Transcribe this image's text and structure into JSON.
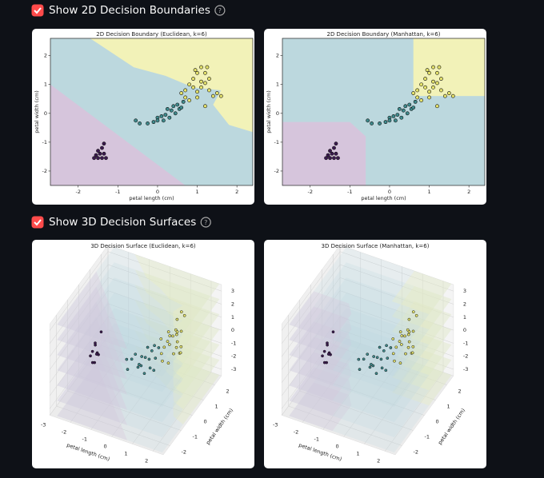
{
  "sections": [
    {
      "checkbox": {
        "label": "Show 2D Decision Boundaries",
        "checked": true
      },
      "help": "?"
    },
    {
      "checkbox": {
        "label": "Show 3D Decision Surfaces",
        "checked": true
      },
      "help": "?"
    }
  ],
  "dataset": {
    "groups": [
      {
        "color": "#3b1a4f",
        "x": [
          -1.5,
          -1.4,
          -1.6,
          -1.45,
          -1.35,
          -1.5,
          -1.4,
          -1.35,
          -1.55,
          -1.3
        ],
        "y": [
          -1.55,
          -1.55,
          -1.55,
          -1.4,
          -1.4,
          -1.3,
          -1.2,
          -1.05,
          -1.45,
          -1.55
        ],
        "z": [
          1.0,
          0.2,
          0.6,
          1.5,
          0.8,
          1.2,
          0.4,
          2.0,
          0.0,
          0.9
        ]
      },
      {
        "color": "#3e8a8c",
        "x": [
          -0.55,
          -0.45,
          -0.25,
          -0.1,
          0.0,
          0.1,
          0.2,
          0.25,
          0.35,
          0.4,
          0.45,
          0.5,
          0.15,
          0.3,
          0.55,
          0.65,
          0.0,
          0.6
        ],
        "y": [
          -0.25,
          -0.35,
          -0.35,
          -0.3,
          -0.15,
          -0.1,
          -0.05,
          0.15,
          0.1,
          0.25,
          0.0,
          0.3,
          -0.25,
          -0.15,
          0.15,
          0.4,
          -0.25,
          0.2
        ],
        "z": [
          -0.6,
          -1.2,
          -0.3,
          0.1,
          -0.8,
          -0.2,
          -1.5,
          0.3,
          -0.5,
          0.0,
          -1.0,
          0.4,
          -0.7,
          -0.1,
          -1.3,
          0.2,
          -0.9,
          -0.4
        ]
      },
      {
        "color": "#e5e36c",
        "x": [
          0.6,
          0.7,
          0.8,
          0.9,
          1.0,
          1.1,
          1.2,
          1.3,
          0.9,
          1.0,
          1.1,
          1.2,
          1.3,
          1.4,
          1.5,
          0.8,
          1.0,
          1.2,
          1.1,
          0.95,
          1.25,
          0.7,
          1.6
        ],
        "y": [
          0.7,
          0.8,
          1.0,
          1.2,
          1.4,
          1.6,
          1.4,
          1.2,
          0.9,
          0.75,
          0.9,
          1.05,
          0.8,
          0.6,
          0.7,
          0.45,
          0.55,
          0.25,
          1.1,
          1.5,
          1.6,
          0.55,
          0.6
        ],
        "z": [
          0.5,
          -0.2,
          0.8,
          0.3,
          1.4,
          1.8,
          0.6,
          -0.3,
          0.0,
          0.9,
          -0.6,
          0.2,
          1.1,
          0.4,
          -0.1,
          -0.8,
          0.7,
          -0.5,
          1.0,
          0.3,
          1.6,
          -0.4,
          0.1
        ]
      }
    ]
  },
  "panels_2d": [
    {
      "title": "2D Decision Boundary (Euclidean, k=6)",
      "xlabel": "petal length (cm)",
      "ylabel": "petal width (cm)",
      "xlim": [
        -2.7,
        2.4
      ],
      "ylim": [
        -2.5,
        2.6
      ],
      "xticks": [
        -2,
        -1,
        0,
        1,
        2
      ],
      "yticks": [
        -2,
        -1,
        0,
        1,
        2
      ],
      "regions": [
        {
          "color": "#bcd8de",
          "points": [
            [
              -2.7,
              -2.5
            ],
            [
              2.4,
              -2.5
            ],
            [
              2.4,
              2.6
            ],
            [
              -2.7,
              2.6
            ]
          ]
        },
        {
          "color": "#d6c5dc",
          "points": [
            [
              -2.7,
              1.0
            ],
            [
              0.7,
              -2.5
            ],
            [
              -2.7,
              -2.5
            ]
          ]
        },
        {
          "color": "#f2f2b8",
          "points": [
            [
              -1.7,
              2.6
            ],
            [
              2.4,
              2.6
            ],
            [
              2.4,
              -0.65
            ],
            [
              1.8,
              -0.4
            ],
            [
              1.4,
              0.3
            ],
            [
              1.6,
              0.8
            ],
            [
              0.9,
              0.9
            ],
            [
              0.2,
              1.3
            ],
            [
              -0.6,
              1.6
            ]
          ]
        }
      ]
    },
    {
      "title": "2D Decision Boundary (Manhattan, k=6)",
      "xlabel": "petal length (cm)",
      "ylabel": "petal width (cm)",
      "xlim": [
        -2.7,
        2.4
      ],
      "ylim": [
        -2.5,
        2.6
      ],
      "xticks": [
        -2,
        -1,
        0,
        1,
        2
      ],
      "yticks": [
        -2,
        -1,
        0,
        1,
        2
      ],
      "regions": [
        {
          "color": "#bcd8de",
          "points": [
            [
              -2.7,
              -2.5
            ],
            [
              2.4,
              -2.5
            ],
            [
              2.4,
              2.6
            ],
            [
              -2.7,
              2.6
            ]
          ]
        },
        {
          "color": "#d6c5dc",
          "points": [
            [
              -2.7,
              -0.3
            ],
            [
              -1.0,
              -0.3
            ],
            [
              -0.6,
              -0.8
            ],
            [
              -0.6,
              -2.5
            ],
            [
              -2.7,
              -2.5
            ]
          ]
        },
        {
          "color": "#f2f2b8",
          "points": [
            [
              0.6,
              2.6
            ],
            [
              2.4,
              2.6
            ],
            [
              2.4,
              0.6
            ],
            [
              0.6,
              0.6
            ]
          ]
        }
      ]
    }
  ],
  "panels_3d": [
    {
      "title": "3D Decision Surface (Euclidean, k=6)",
      "xlabel": "petal length (cm)",
      "ylabel": "petal width (cm)",
      "xlim": [
        -3,
        2.5
      ],
      "ylim": [
        -2.6,
        2.6
      ],
      "zlim": [
        -3.5,
        3.5
      ],
      "xticks": [
        -3,
        -2,
        -1,
        0,
        1,
        2
      ],
      "yticks": [
        -2,
        -1,
        0,
        1,
        2
      ],
      "zticks": [
        -3,
        -2,
        -1,
        0,
        1,
        2,
        3
      ]
    },
    {
      "title": "3D Decision Surface (Manhattan, k=6)",
      "xlabel": "petal length (cm)",
      "ylabel": "petal width (cm)",
      "xlim": [
        -3,
        2.5
      ],
      "ylim": [
        -2.6,
        2.6
      ],
      "zlim": [
        -3.5,
        3.5
      ],
      "xticks": [
        -3,
        -2,
        -1,
        0,
        1,
        2
      ],
      "yticks": [
        -2,
        -1,
        0,
        1,
        2
      ],
      "zticks": [
        -3,
        -2,
        -1,
        0,
        1,
        2,
        3
      ]
    }
  ]
}
